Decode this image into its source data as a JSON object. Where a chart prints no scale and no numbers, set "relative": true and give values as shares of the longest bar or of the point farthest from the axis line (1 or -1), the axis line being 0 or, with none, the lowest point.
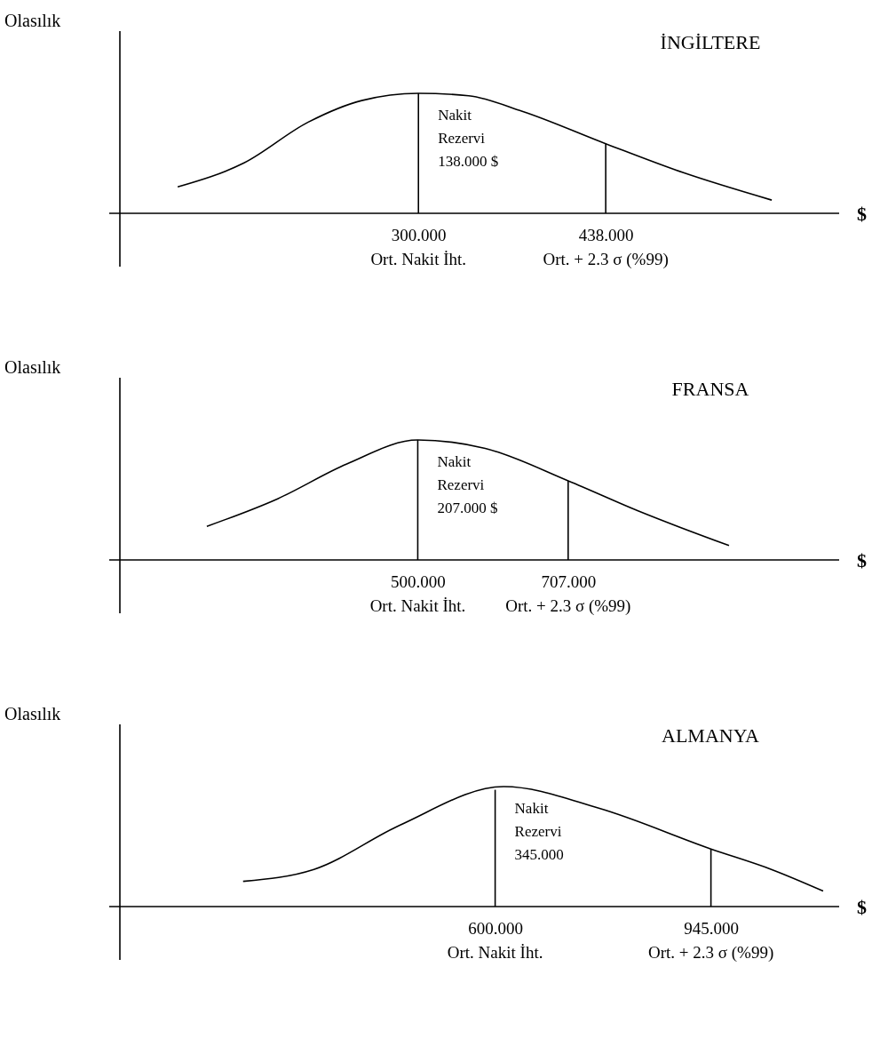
{
  "chart_data": [
    {
      "type": "line",
      "title": "İNGİLTERE",
      "ylabel": "Olasılık",
      "xlabel": "$",
      "relative": true,
      "xlim": [
        80,
        610
      ],
      "xticks": [
        {
          "value": 300,
          "label": "300.000"
        },
        {
          "value": 438,
          "label": "438.000"
        }
      ],
      "series": [
        {
          "color": "#000000",
          "x": [
            122.6,
            171.5,
            218.8,
            258.2,
            300,
            337,
            376.5,
            438,
            494.8,
            560.3
          ],
          "values": [
            0.22,
            0.42,
            0.76,
            0.94,
            1,
            0.98,
            0.85,
            0.58,
            0.34,
            0.11
          ]
        }
      ],
      "ref_lines": [
        {
          "axis": "x",
          "value": 300,
          "label": "Ort. Nakit İht."
        },
        {
          "axis": "x",
          "value": 438,
          "label": "Ort. + 2.3 σ (%99)"
        }
      ],
      "annotations": [
        "Nakit\nRezervi\n138.000 $"
      ]
    },
    {
      "type": "line",
      "title": "FRANSA",
      "ylabel": "Olasılık",
      "xlabel": "$",
      "relative": true,
      "xlim": [
        90,
        1080
      ],
      "xticks": [
        {
          "value": 500,
          "label": "500.000"
        },
        {
          "value": 707,
          "label": "707.000"
        }
      ],
      "series": [
        {
          "color": "#000000",
          "x": [
            209.7,
            307.2,
            402.4,
            500,
            592.8,
            707,
            807,
            928.4
          ],
          "values": [
            0.28,
            0.51,
            0.8,
            1,
            0.93,
            0.66,
            0.4,
            0.12
          ]
        }
      ],
      "ref_lines": [
        {
          "axis": "x",
          "value": 500,
          "label": "Ort. Nakit İht."
        },
        {
          "axis": "x",
          "value": 707,
          "label": "Ort. + 2.3 σ (%99)"
        }
      ],
      "annotations": [
        "Nakit\nRezervi\n207.000 $"
      ]
    },
    {
      "type": "line",
      "title": "ALMANYA",
      "ylabel": "Olasılık",
      "xlabel": "$",
      "relative": true,
      "xlim": [
        0,
        1150
      ],
      "xticks": [
        {
          "value": 600,
          "label": "600.000"
        },
        {
          "value": 945,
          "label": "945.000"
        }
      ],
      "series": [
        {
          "color": "#000000",
          "x": [
            197,
            310.2,
            448.2,
            613.8,
            765.6,
            945,
            1041.6,
            1124.4
          ],
          "values": [
            0.21,
            0.31,
            0.68,
            1,
            0.82,
            0.48,
            0.31,
            0.13
          ]
        }
      ],
      "ref_lines": [
        {
          "axis": "x",
          "value": 600,
          "label": "Ort. Nakit İht."
        },
        {
          "axis": "x",
          "value": 945,
          "label": "Ort. + 2.3 σ (%99)"
        }
      ],
      "annotations": [
        "Nakit\nRezervi\n345.000"
      ]
    }
  ]
}
